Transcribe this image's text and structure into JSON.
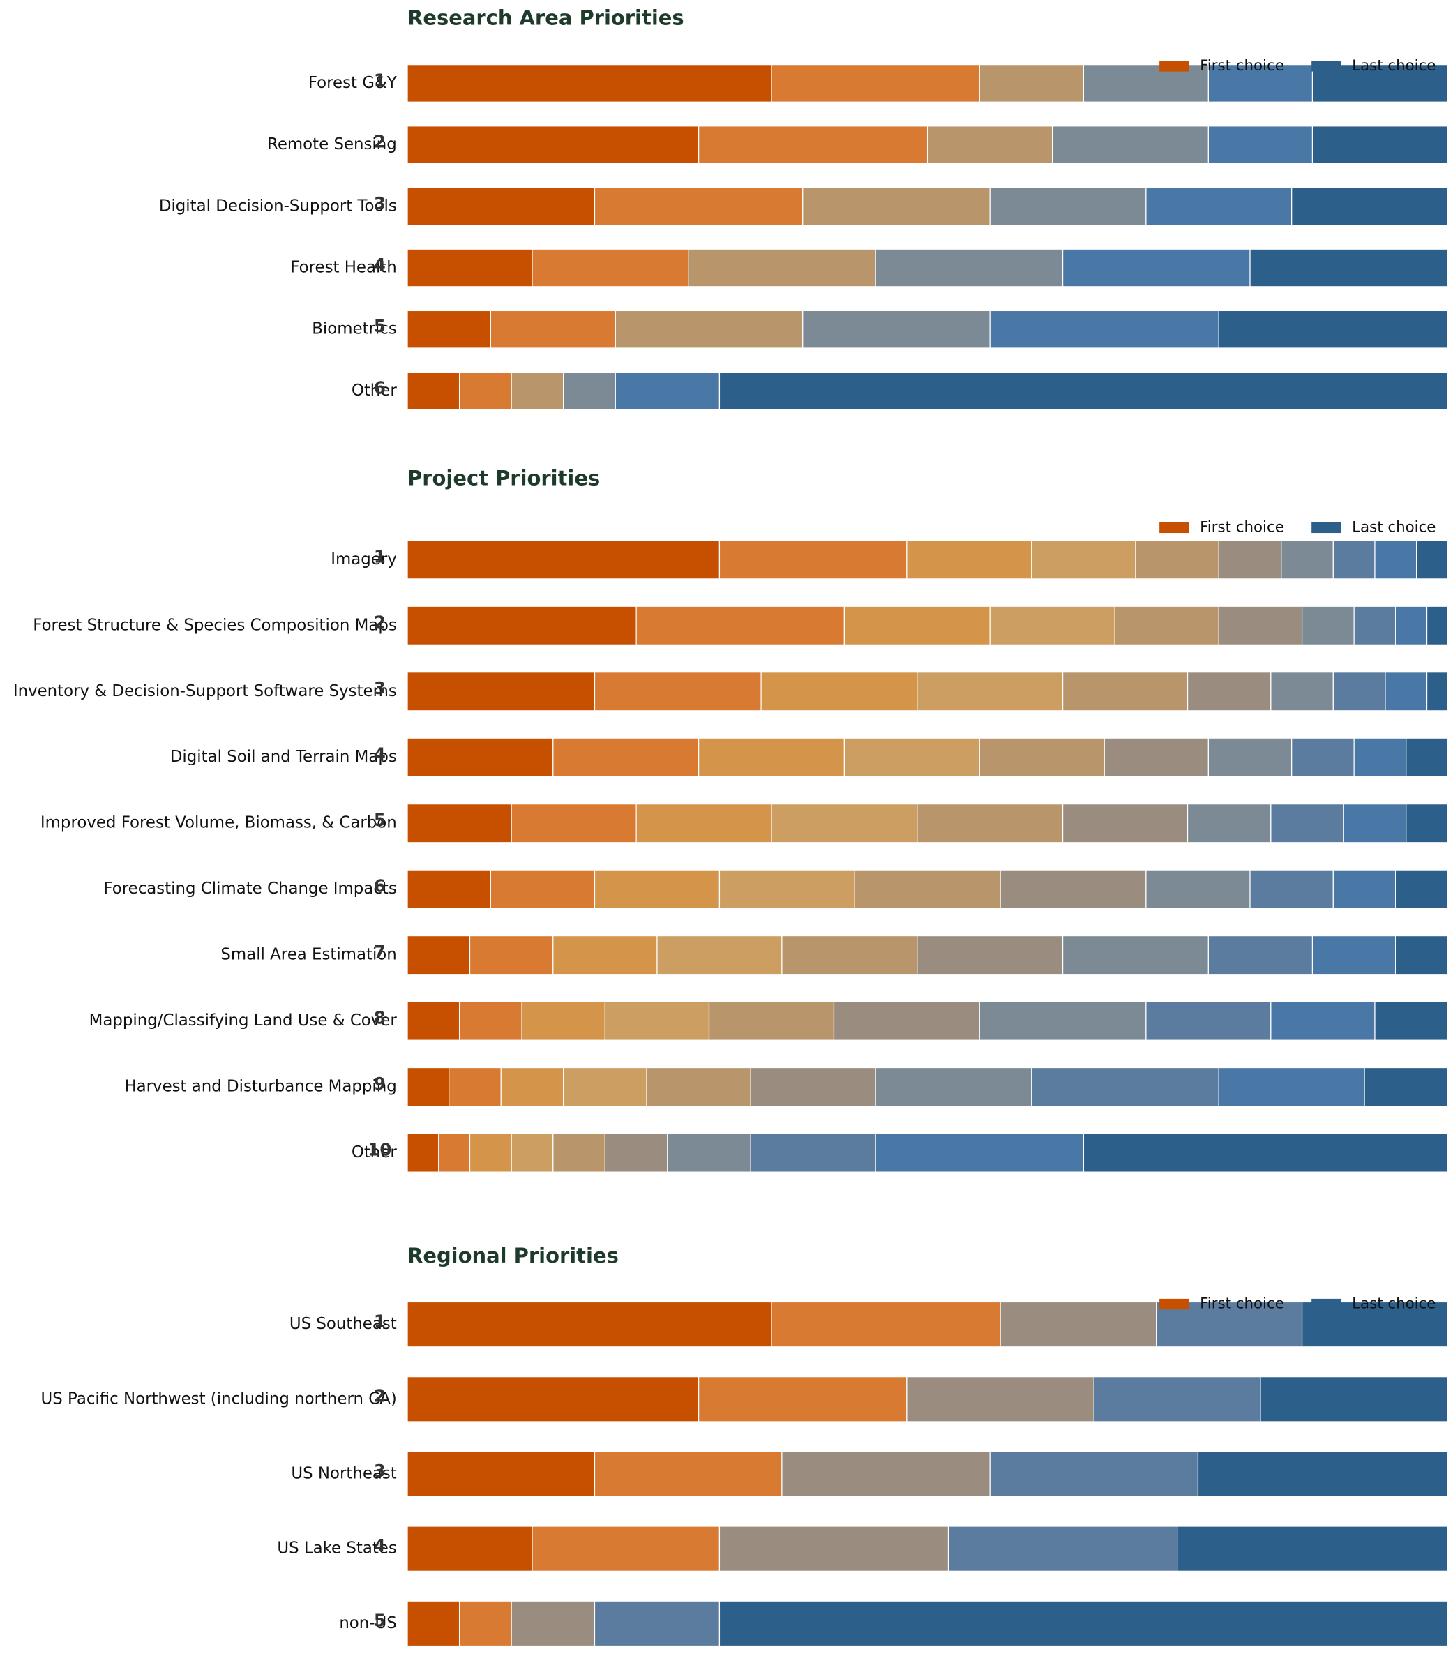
{
  "chart_data": [
    {
      "type": "bar",
      "orientation": "horizontal",
      "stacked": true,
      "title": "Research Area Priorities",
      "categories": [
        "Forest G&Y",
        "Remote Sensing",
        "Digital Decision-Support Tools",
        "Forest Health",
        "Biometrics",
        "Other"
      ],
      "rank_labels": [
        1,
        2,
        3,
        4,
        5,
        6
      ],
      "xlim": [
        0,
        100
      ],
      "legend": [
        {
          "label": "First choice",
          "color": "#c75000"
        },
        {
          "label": "Last choice",
          "color": "#2c5f8a"
        }
      ],
      "series": [
        {
          "color": "#c75000",
          "values": [
            35,
            28,
            18,
            12,
            8,
            5
          ]
        },
        {
          "color": "#d97a32",
          "values": [
            20,
            22,
            20,
            15,
            12,
            5
          ]
        },
        {
          "color": "#b8956a",
          "values": [
            10,
            12,
            18,
            18,
            18,
            5
          ]
        },
        {
          "color": "#7b8a94",
          "values": [
            12,
            15,
            15,
            18,
            18,
            5
          ]
        },
        {
          "color": "#4a78a6",
          "values": [
            10,
            10,
            14,
            18,
            22,
            10
          ]
        },
        {
          "color": "#2c5f8a",
          "values": [
            13,
            13,
            15,
            19,
            22,
            70
          ]
        }
      ]
    },
    {
      "type": "bar",
      "orientation": "horizontal",
      "stacked": true,
      "title": "Project Priorities",
      "categories": [
        "Imagery",
        "Forest Structure & Species Composition Maps",
        "Inventory & Decision-Support Software Systems",
        "Digital Soil and Terrain Maps",
        "Improved Forest Volume, Biomass, & Carbon",
        "Forecasting Climate Change Impacts",
        "Small Area Estimation",
        "Mapping/Classifying Land Use & Cover",
        "Harvest and Disturbance Mapping",
        "Other"
      ],
      "rank_labels": [
        1,
        2,
        3,
        4,
        5,
        6,
        7,
        8,
        9,
        10
      ],
      "xlim": [
        0,
        100
      ],
      "legend": [
        {
          "label": "First choice",
          "color": "#c75000"
        },
        {
          "label": "Last choice",
          "color": "#2c5f8a"
        }
      ],
      "series": [
        {
          "color": "#c75000",
          "values": [
            30,
            22,
            18,
            14,
            10,
            8,
            6,
            5,
            4,
            3
          ]
        },
        {
          "color": "#d97a32",
          "values": [
            18,
            20,
            16,
            14,
            12,
            10,
            8,
            6,
            5,
            3
          ]
        },
        {
          "color": "#d4954a",
          "values": [
            12,
            14,
            15,
            14,
            13,
            12,
            10,
            8,
            6,
            4
          ]
        },
        {
          "color": "#cc9e62",
          "values": [
            10,
            12,
            14,
            13,
            14,
            13,
            12,
            10,
            8,
            4
          ]
        },
        {
          "color": "#b8956a",
          "values": [
            8,
            10,
            12,
            12,
            14,
            14,
            13,
            12,
            10,
            5
          ]
        },
        {
          "color": "#9a8c7e",
          "values": [
            6,
            8,
            8,
            10,
            12,
            14,
            14,
            14,
            12,
            6
          ]
        },
        {
          "color": "#7b8a94",
          "values": [
            5,
            5,
            6,
            8,
            8,
            10,
            14,
            16,
            15,
            8
          ]
        },
        {
          "color": "#5b7c9e",
          "values": [
            4,
            4,
            5,
            6,
            7,
            8,
            10,
            12,
            18,
            12
          ]
        },
        {
          "color": "#4a78a6",
          "values": [
            4,
            3,
            4,
            5,
            6,
            6,
            8,
            10,
            14,
            20
          ]
        },
        {
          "color": "#2c5f8a",
          "values": [
            3,
            2,
            2,
            4,
            4,
            5,
            5,
            7,
            8,
            35
          ]
        }
      ]
    },
    {
      "type": "bar",
      "orientation": "horizontal",
      "stacked": true,
      "title": "Regional Priorities",
      "categories": [
        "US Southeast",
        "US Pacific Northwest (including northern CA)",
        "US Northeast",
        "US Lake States",
        "non-US"
      ],
      "rank_labels": [
        1,
        2,
        3,
        4,
        5
      ],
      "xlim": [
        0,
        100
      ],
      "legend": [
        {
          "label": "First choice",
          "color": "#c75000"
        },
        {
          "label": "Last choice",
          "color": "#2c5f8a"
        }
      ],
      "series": [
        {
          "color": "#c75000",
          "values": [
            35,
            28,
            18,
            12,
            5
          ]
        },
        {
          "color": "#d97a32",
          "values": [
            22,
            20,
            18,
            18,
            5
          ]
        },
        {
          "color": "#9a8c7e",
          "values": [
            15,
            18,
            20,
            22,
            8
          ]
        },
        {
          "color": "#5b7c9e",
          "values": [
            14,
            16,
            20,
            22,
            12
          ]
        },
        {
          "color": "#2c5f8a",
          "values": [
            14,
            18,
            24,
            26,
            70
          ]
        }
      ]
    }
  ]
}
